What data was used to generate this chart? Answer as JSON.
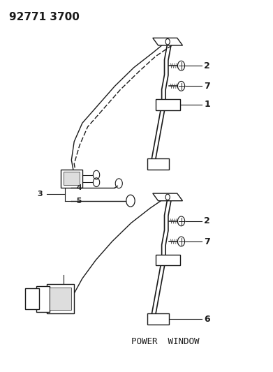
{
  "title": "92771 3700",
  "background_color": "#ffffff",
  "line_color": "#1a1a1a",
  "text_color": "#1a1a1a",
  "title_fontsize": 11,
  "label_fontsize": 9,
  "figsize": [
    3.91,
    5.33
  ],
  "dpi": 100,
  "top": {
    "label1": "1",
    "label2": "2",
    "label7": "7",
    "label3": "3",
    "label4": "4",
    "label5": "5"
  },
  "bottom": {
    "label2": "2",
    "label6": "6",
    "label7": "7",
    "power_window_text": "POWER  WINDOW",
    "pw_fontsize": 9
  }
}
